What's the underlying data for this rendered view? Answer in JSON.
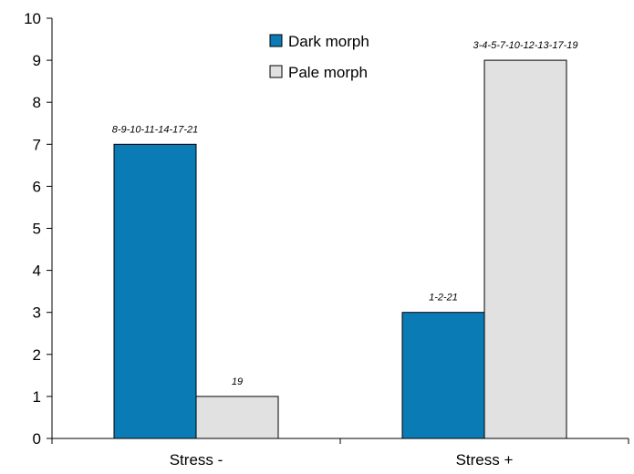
{
  "chart_data": {
    "type": "bar",
    "title": "",
    "xlabel": "",
    "ylabel": "",
    "categories": [
      "Stress -",
      "Stress +"
    ],
    "series": [
      {
        "name": "Dark morph",
        "color": "#0A7BB5",
        "values": [
          7,
          3
        ],
        "annotations": [
          "8-9-10-11-14-17-21",
          "1-2-21"
        ]
      },
      {
        "name": "Pale morph",
        "color": "#E1E1E1",
        "values": [
          1,
          9
        ],
        "annotations": [
          "19",
          "3-4-5-7-10-12-13-17-19"
        ]
      }
    ],
    "ylim": [
      0,
      10
    ],
    "yticks": [
      "0",
      "1",
      "2",
      "3",
      "4",
      "5",
      "6",
      "7",
      "8",
      "9",
      "10"
    ],
    "grid": false,
    "legend_position": "top-center"
  }
}
